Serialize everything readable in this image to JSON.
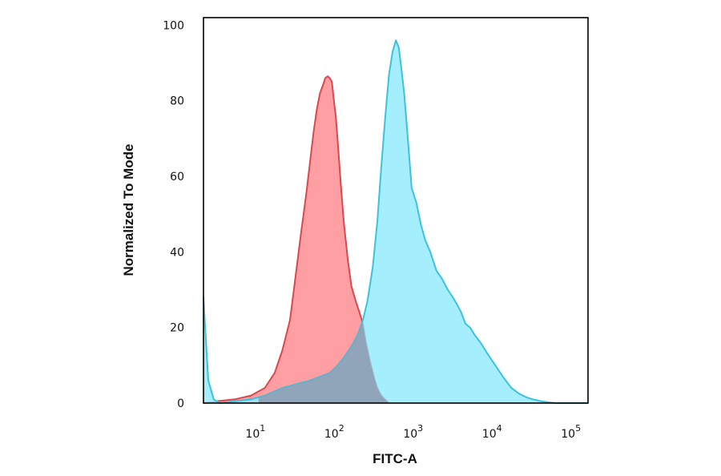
{
  "chart_data": {
    "type": "area",
    "xlabel": "FITC-A",
    "ylabel": "Normalized To Mode",
    "x_scale": "log",
    "xlim": [
      2,
      150000
    ],
    "ylim": [
      0,
      102
    ],
    "grid": false,
    "legend": "none",
    "x_ticks": [
      {
        "value": 10,
        "base": "10",
        "exp": "1"
      },
      {
        "value": 100,
        "base": "10",
        "exp": "2"
      },
      {
        "value": 1000,
        "base": "10",
        "exp": "3"
      },
      {
        "value": 10000,
        "base": "10",
        "exp": "4"
      },
      {
        "value": 100000,
        "base": "10",
        "exp": "5"
      }
    ],
    "y_ticks": [
      0,
      20,
      40,
      60,
      80,
      100
    ],
    "series": [
      {
        "color": "#f47b7b",
        "fill": "#ff9a9e",
        "stroke": "#d9484f",
        "x": [
          2,
          3,
          5,
          8,
          12,
          16,
          20,
          25,
          30,
          35,
          40,
          45,
          50,
          55,
          60,
          65,
          70,
          75,
          80,
          85,
          90,
          95,
          100,
          110,
          120,
          135,
          150,
          170,
          190,
          210,
          230,
          260,
          290,
          320,
          360,
          400,
          450
        ],
        "y": [
          0,
          0.5,
          1,
          2,
          4,
          8,
          14,
          22,
          35,
          46,
          55,
          64,
          72,
          78,
          82,
          84,
          86,
          86.5,
          86,
          85,
          80,
          76,
          70,
          58,
          48,
          38,
          31,
          27,
          24,
          21,
          16,
          11,
          7,
          4,
          2,
          1,
          0
        ]
      },
      {
        "color": "#35c3e6",
        "fill": "#8eeafc",
        "stroke": "#3cc1de",
        "x": [
          2,
          2.1,
          2.3,
          2.7,
          3.2,
          5,
          8,
          12,
          20,
          30,
          45,
          60,
          80,
          100,
          120,
          150,
          180,
          210,
          240,
          280,
          320,
          360,
          400,
          450,
          500,
          550,
          600,
          650,
          700,
          780,
          870,
          1000,
          1150,
          1300,
          1500,
          1800,
          2100,
          2500,
          2900,
          3300,
          3700,
          4200,
          4800,
          5500,
          6500,
          8000,
          10000,
          12500,
          16000,
          20000,
          25000,
          30000,
          38000,
          48000,
          60000,
          80000,
          110000,
          150000
        ],
        "y": [
          28,
          20,
          6,
          1,
          0,
          0.5,
          1,
          2,
          4,
          5,
          6,
          7,
          8,
          10,
          12,
          15,
          18,
          22,
          27,
          36,
          48,
          63,
          75,
          87,
          93,
          96,
          94,
          88,
          82,
          70,
          57,
          53,
          47,
          43,
          40,
          35,
          33,
          30,
          28,
          26,
          24,
          21,
          20,
          18,
          16,
          13,
          10,
          7,
          4,
          2.5,
          1.5,
          1,
          0.5,
          0.2,
          0,
          0,
          0,
          0
        ]
      }
    ]
  }
}
